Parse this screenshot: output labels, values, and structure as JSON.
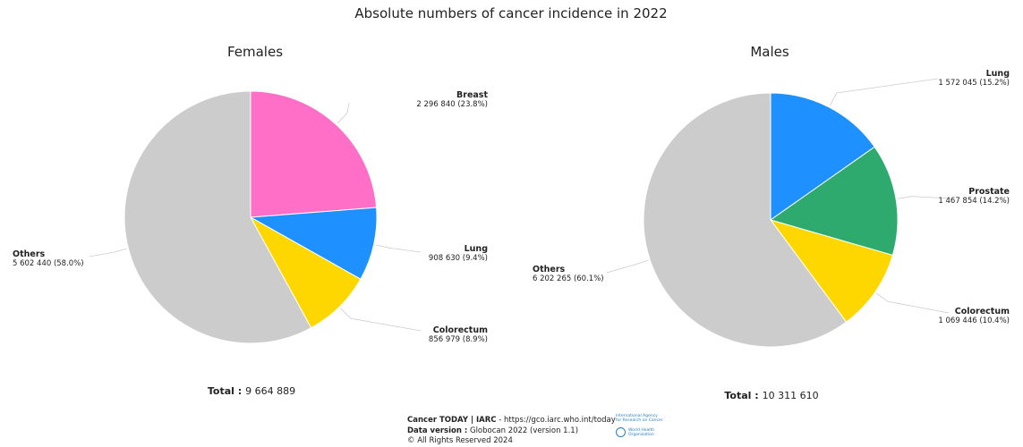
{
  "title": "Absolute numbers of cancer incidence in 2022",
  "colors": {
    "breast": "#ff6ec7",
    "lung": "#1e90ff",
    "colorectum": "#ffd700",
    "prostate": "#2eaa6e",
    "others": "#cccccc",
    "leader": "#cccccc"
  },
  "chart_data": [
    {
      "type": "pie",
      "title": "Females",
      "total_label": "Total :",
      "total_value": "9 664 889",
      "slices": [
        {
          "name": "Breast",
          "value": 2296840,
          "value_label": "2 296 840 (23.8%)",
          "color": "#ff6ec7"
        },
        {
          "name": "Lung",
          "value": 908630,
          "value_label": "908 630 (9.4%)",
          "color": "#1e90ff"
        },
        {
          "name": "Colorectum",
          "value": 856979,
          "value_label": "856 979 (8.9%)",
          "color": "#ffd700"
        },
        {
          "name": "Others",
          "value": 5602440,
          "value_label": "5 602 440 (58.0%)",
          "color": "#cccccc"
        }
      ]
    },
    {
      "type": "pie",
      "title": "Males",
      "total_label": "Total :",
      "total_value": "10 311 610",
      "slices": [
        {
          "name": "Lung",
          "value": 1572045,
          "value_label": "1 572 045 (15.2%)",
          "color": "#1e90ff"
        },
        {
          "name": "Prostate",
          "value": 1467854,
          "value_label": "1 467 854 (14.2%)",
          "color": "#2eaa6e"
        },
        {
          "name": "Colorectum",
          "value": 1069446,
          "value_label": "1 069 446 (10.4%)",
          "color": "#ffd700"
        },
        {
          "name": "Others",
          "value": 6202265,
          "value_label": "6 202 265 (60.1%)",
          "color": "#cccccc"
        }
      ]
    }
  ],
  "footer": {
    "source_bold": "Cancer TODAY | IARC",
    "source_rest": " - https://gco.iarc.who.int/today",
    "version_bold": "Data version :",
    "version_rest": " Globocan 2022 (version 1.1)",
    "rights": "© All Rights Reserved 2024"
  },
  "logos": {
    "iarc_line1": "International Agency",
    "iarc_line2": "for Research on Cancer",
    "who_line1": "World Health",
    "who_line2": "Organization"
  }
}
